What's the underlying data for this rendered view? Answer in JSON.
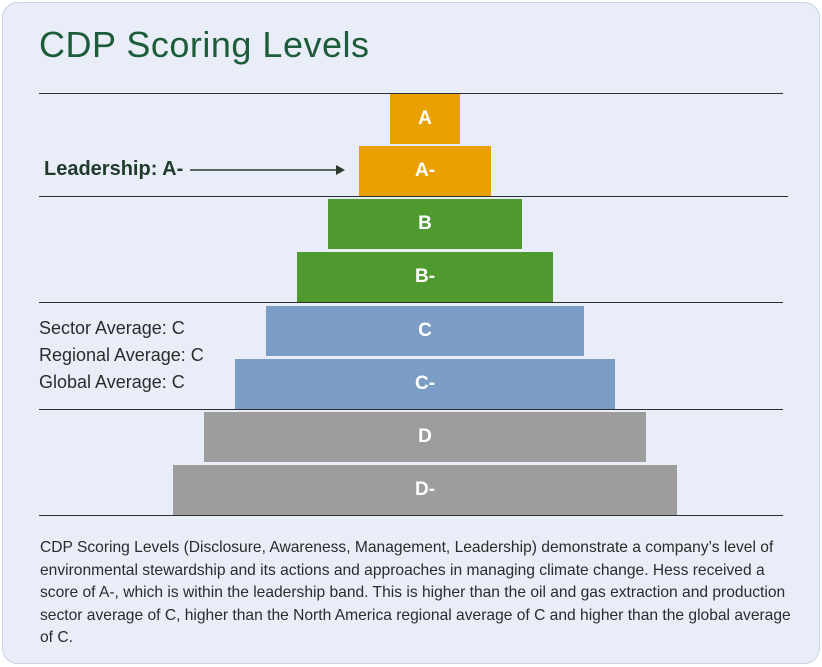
{
  "title": "CDP Scoring Levels",
  "leadership_label": "Leadership: A-",
  "averages": [
    "Sector Average: C",
    "Regional Average: C",
    "Global Average: C"
  ],
  "tiers": [
    {
      "label": "A",
      "color": "#e8a100",
      "band": "leadership"
    },
    {
      "label": "A-",
      "color": "#e8a100",
      "band": "leadership"
    },
    {
      "label": "B",
      "color": "#4e9a2f",
      "band": "management"
    },
    {
      "label": "B-",
      "color": "#4e9a2f",
      "band": "management"
    },
    {
      "label": "C",
      "color": "#7b9cc5",
      "band": "awareness"
    },
    {
      "label": "C-",
      "color": "#7b9cc5",
      "band": "awareness"
    },
    {
      "label": "D",
      "color": "#9d9d9d",
      "band": "disclosure"
    },
    {
      "label": "D-",
      "color": "#9d9d9d",
      "band": "disclosure"
    }
  ],
  "highlighted_score": "A-",
  "caption": "CDP Scoring Levels (Disclosure, Awareness, Management, Leadership) demonstrate a company’s level of environmental stewardship and its actions and approaches in managing climate change. Hess received a score of A-, which is within the leadership band. This is higher than the oil and gas extraction and production sector average of C, higher than the North America regional average of C and higher than the global average of C."
}
